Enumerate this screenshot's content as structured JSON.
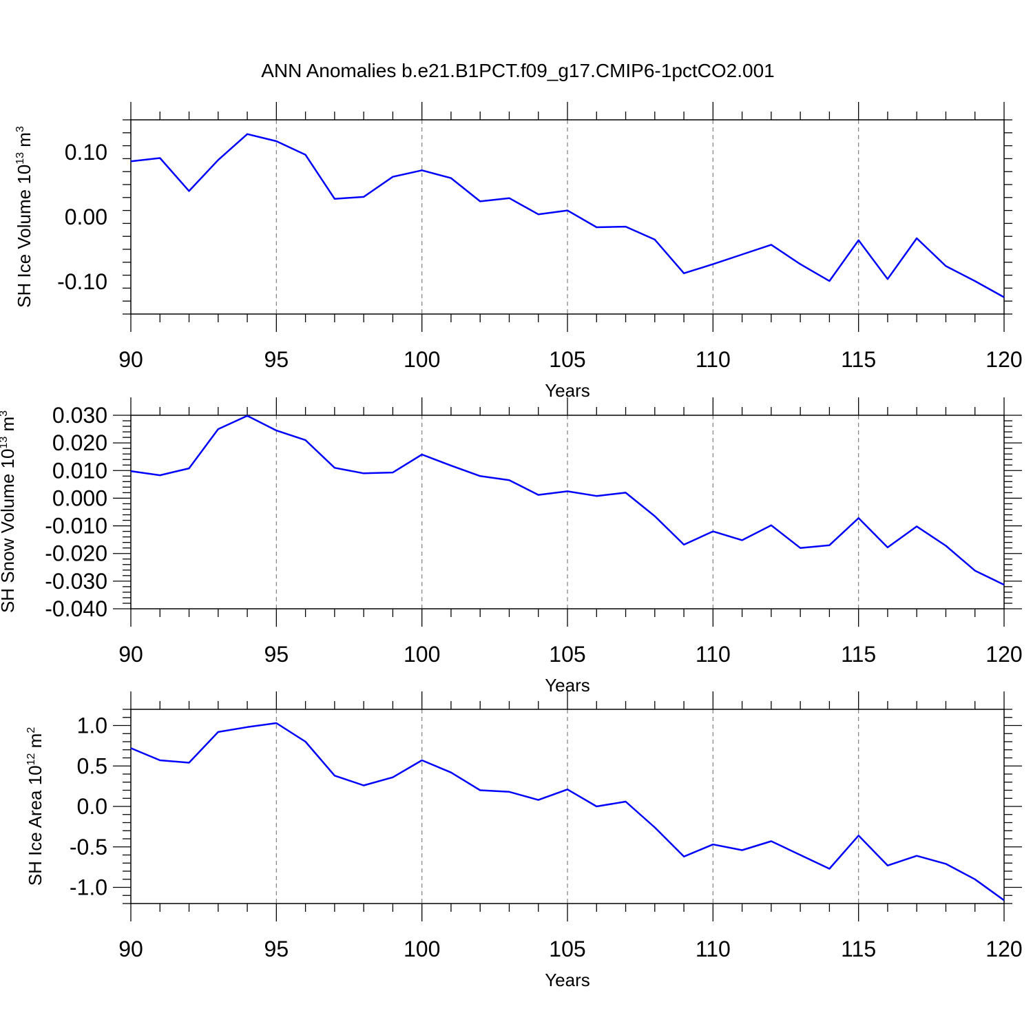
{
  "figure": {
    "title": "ANN Anomalies b.e21.B1PCT.f09_g17.CMIP6-1pctCO2.001"
  },
  "colors": {
    "line": "#0000ff",
    "axis": "#000000",
    "grid": "#7f7f7f",
    "background": "#ffffff"
  },
  "chart_data": [
    {
      "type": "line",
      "title": "",
      "xlabel": "Years",
      "ylabel_main": "SH Ice Volume 10",
      "ylabel_exp": "13",
      "ylabel_unit": " m",
      "ylabel_unit_exp": "3",
      "xlim": [
        90,
        120
      ],
      "ylim": [
        -0.15,
        0.15
      ],
      "xticks": [
        90,
        95,
        100,
        105,
        110,
        115,
        120
      ],
      "yticks": [
        -0.1,
        0.0,
        0.1
      ],
      "ytick_labels": [
        "-0.10",
        "0.00",
        "0.10"
      ],
      "grid": "x-dashed",
      "series": [
        {
          "name": "SH Ice Volume",
          "x": [
            90,
            91,
            92,
            93,
            94,
            95,
            96,
            97,
            98,
            99,
            100,
            101,
            102,
            103,
            104,
            105,
            106,
            107,
            108,
            109,
            110,
            111,
            112,
            113,
            114,
            115,
            116,
            117,
            118,
            119,
            120
          ],
          "values": [
            0.086,
            0.091,
            0.04,
            0.088,
            0.128,
            0.117,
            0.096,
            0.028,
            0.031,
            0.062,
            0.072,
            0.06,
            0.024,
            0.029,
            0.004,
            0.01,
            -0.016,
            -0.015,
            -0.035,
            -0.087,
            -0.073,
            -0.058,
            -0.043,
            -0.073,
            -0.099,
            -0.036,
            -0.096,
            -0.033,
            -0.076,
            -0.099,
            -0.124
          ]
        }
      ]
    },
    {
      "type": "line",
      "title": "",
      "xlabel": "Years",
      "ylabel_main": "SH Snow Volume 10",
      "ylabel_exp": "13",
      "ylabel_unit": " m",
      "ylabel_unit_exp": "3",
      "xlim": [
        90,
        120
      ],
      "ylim": [
        -0.04,
        0.03
      ],
      "xticks": [
        90,
        95,
        100,
        105,
        110,
        115,
        120
      ],
      "yticks": [
        -0.04,
        -0.03,
        -0.02,
        -0.01,
        0.0,
        0.01,
        0.02,
        0.03
      ],
      "ytick_labels": [
        "-0.040",
        "-0.030",
        "-0.020",
        "-0.010",
        "0.000",
        "0.010",
        "0.020",
        "0.030"
      ],
      "grid": "x-dashed",
      "series": [
        {
          "name": "SH Snow Volume",
          "x": [
            90,
            91,
            92,
            93,
            94,
            95,
            96,
            97,
            98,
            99,
            100,
            101,
            102,
            103,
            104,
            105,
            106,
            107,
            108,
            109,
            110,
            111,
            112,
            113,
            114,
            115,
            116,
            117,
            118,
            119,
            120
          ],
          "values": [
            0.0098,
            0.0083,
            0.0108,
            0.025,
            0.0298,
            0.0245,
            0.021,
            0.011,
            0.009,
            0.0093,
            0.0158,
            0.0118,
            0.008,
            0.0065,
            0.0012,
            0.0025,
            0.0008,
            0.002,
            -0.0065,
            -0.0168,
            -0.012,
            -0.0152,
            -0.0098,
            -0.018,
            -0.017,
            -0.0072,
            -0.0178,
            -0.0102,
            -0.0172,
            -0.0262,
            -0.0313
          ]
        }
      ]
    },
    {
      "type": "line",
      "title": "",
      "xlabel": "Years",
      "ylabel_main": "SH Ice Area 10",
      "ylabel_exp": "12",
      "ylabel_unit": " m",
      "ylabel_unit_exp": "2",
      "xlim": [
        90,
        120
      ],
      "ylim": [
        -1.2,
        1.2
      ],
      "xticks": [
        90,
        95,
        100,
        105,
        110,
        115,
        120
      ],
      "yticks": [
        -1.0,
        -0.5,
        0.0,
        0.5,
        1.0
      ],
      "ytick_labels": [
        "-1.0",
        "-0.5",
        "0.0",
        "0.5",
        "1.0"
      ],
      "grid": "x-dashed",
      "series": [
        {
          "name": "SH Ice Area",
          "x": [
            90,
            91,
            92,
            93,
            94,
            95,
            96,
            97,
            98,
            99,
            100,
            101,
            102,
            103,
            104,
            105,
            106,
            107,
            108,
            109,
            110,
            111,
            112,
            113,
            114,
            115,
            116,
            117,
            118,
            119,
            120
          ],
          "values": [
            0.72,
            0.57,
            0.54,
            0.92,
            0.98,
            1.03,
            0.8,
            0.38,
            0.26,
            0.36,
            0.57,
            0.42,
            0.2,
            0.18,
            0.08,
            0.21,
            0.0,
            0.06,
            -0.26,
            -0.62,
            -0.47,
            -0.54,
            -0.43,
            -0.6,
            -0.77,
            -0.36,
            -0.73,
            -0.61,
            -0.71,
            -0.9,
            -1.16
          ]
        }
      ]
    }
  ]
}
